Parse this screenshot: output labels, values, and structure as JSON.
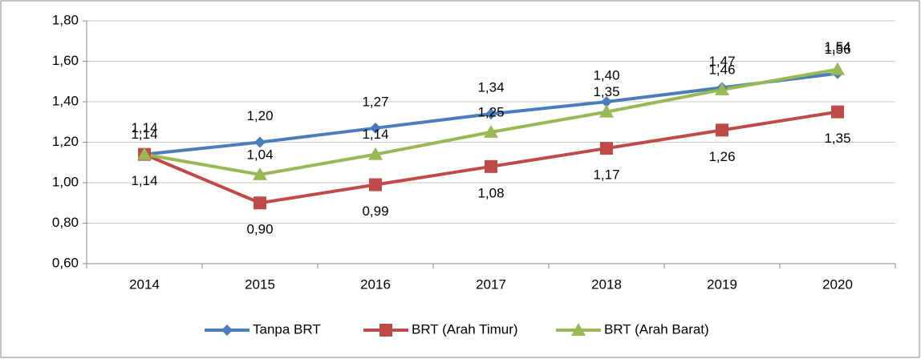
{
  "chart_data": {
    "type": "line",
    "categories": [
      "2014",
      "2015",
      "2016",
      "2017",
      "2018",
      "2019",
      "2020"
    ],
    "series": [
      {
        "name": "Tanpa BRT",
        "color": "#4a7ebb",
        "marker": "diamond",
        "values": [
          1.14,
          1.2,
          1.27,
          1.34,
          1.4,
          1.47,
          1.54
        ],
        "value_labels": [
          "1,14",
          "1,20",
          "1,27",
          "1,34",
          "1,40",
          "1,47",
          "1,54"
        ]
      },
      {
        "name": "BRT (Arah Timur)",
        "color": "#be4b48",
        "marker": "square",
        "values": [
          1.14,
          0.9,
          0.99,
          1.08,
          1.17,
          1.26,
          1.35
        ],
        "value_labels": [
          "1,14",
          "0,90",
          "0,99",
          "1,08",
          "1,17",
          "1,26",
          "1,35"
        ]
      },
      {
        "name": "BRT (Arah Barat)",
        "color": "#98b954",
        "marker": "triangle",
        "values": [
          1.14,
          1.04,
          1.14,
          1.25,
          1.35,
          1.46,
          1.56
        ],
        "value_labels": [
          "1,14",
          "1,04",
          "1,14",
          "1,25",
          "1,35",
          "1,46",
          "1,56"
        ]
      }
    ],
    "ylim": [
      0.6,
      1.8
    ],
    "yticks": [
      {
        "value": 0.6,
        "label": "0,60"
      },
      {
        "value": 0.8,
        "label": "0,80"
      },
      {
        "value": 1.0,
        "label": "1,00"
      },
      {
        "value": 1.2,
        "label": "1,20"
      },
      {
        "value": 1.4,
        "label": "1,40"
      },
      {
        "value": 1.6,
        "label": "1,60"
      },
      {
        "value": 1.8,
        "label": "1,80"
      }
    ],
    "grid": true,
    "legend": "bottom"
  }
}
